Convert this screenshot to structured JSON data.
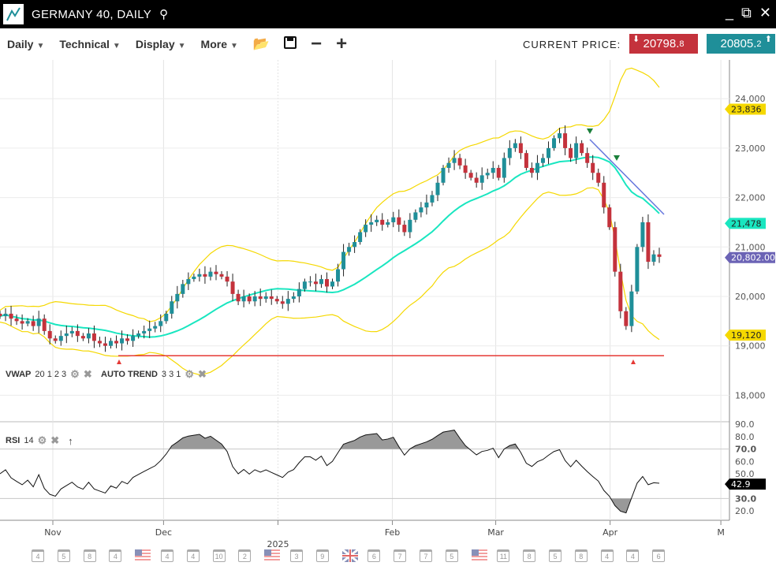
{
  "window": {
    "title": "GERMANY 40, DAILY",
    "icons": [
      "chart-logo-icon",
      "search-icon",
      "minimize-icon",
      "detach-icon",
      "close-icon"
    ]
  },
  "toolbar": {
    "menus": [
      "Daily",
      "Technical",
      "Display",
      "More"
    ],
    "tools": [
      "open-folder-icon",
      "save-icon",
      "zoom-out-icon",
      "zoom-in-icon"
    ],
    "current_price_label": "CURRENT PRICE:",
    "sell": {
      "main": "20798.",
      "small": "8"
    },
    "buy": {
      "main": "20805.",
      "small": "2"
    }
  },
  "colors": {
    "sell": "#c4323c",
    "buy": "#1f8f99",
    "bollinger": "#f5d800",
    "vwap": "#19e6c0",
    "trend": "#6677dd",
    "support": "#e53935",
    "up_candle": "#1f8f99",
    "down_candle": "#c4323c",
    "current": "#6b63b5"
  },
  "indicators": {
    "vwap": {
      "name": "VWAP",
      "params": "20 1 2 3"
    },
    "auto_trend": {
      "name": "AUTO TREND",
      "params": "3 3 1"
    },
    "rsi": {
      "name": "RSI",
      "params": "14"
    }
  },
  "chart_data": {
    "type": "candlestick",
    "start_date": "2024-10-21",
    "closes": [
      19600,
      19650,
      19550,
      19500,
      19450,
      19500,
      19400,
      19550,
      19300,
      19150,
      19100,
      19200,
      19250,
      19300,
      19200,
      19150,
      19250,
      19100,
      19050,
      19000,
      19100,
      19050,
      19150,
      19100,
      19200,
      19250,
      19300,
      19350,
      19400,
      19500,
      19650,
      19900,
      20050,
      20250,
      20350,
      20400,
      20450,
      20400,
      20500,
      20450,
      20400,
      20300,
      20050,
      19900,
      20000,
      19900,
      20000,
      19950,
      20000,
      19950,
      19900,
      19850,
      19950,
      20000,
      20150,
      20300,
      20300,
      20250,
      20350,
      20200,
      20300,
      20550,
      20900,
      21000,
      21100,
      21300,
      21450,
      21500,
      21550,
      21450,
      21500,
      21600,
      21450,
      21300,
      21550,
      21700,
      21800,
      21900,
      22050,
      22300,
      22600,
      22700,
      22800,
      22650,
      22500,
      22400,
      22300,
      22450,
      22500,
      22600,
      22400,
      22800,
      23000,
      23100,
      22900,
      22600,
      22500,
      22700,
      22800,
      23000,
      23200,
      23300,
      23000,
      22800,
      23100,
      22900,
      22700,
      22500,
      22300,
      21800,
      21400,
      20500,
      19700,
      19400,
      20100,
      21000,
      21500,
      20700,
      20850,
      20800
    ],
    "y_ticks": [
      18000,
      19000,
      20000,
      21000,
      22000,
      23000,
      24000
    ],
    "y_range": [
      17600,
      24800
    ],
    "rsi_ticks": [
      "90.0",
      "80.0",
      "70.0",
      "60.0",
      "50.0",
      "30.0",
      "20.0"
    ],
    "rsi_range": [
      15,
      95
    ],
    "x_labels": [
      {
        "label": "Nov",
        "date": "2024-11-01"
      },
      {
        "label": "Dec",
        "date": "2024-12-01"
      },
      {
        "label": "2025",
        "date": "2025-01-01"
      },
      {
        "label": "Feb",
        "date": "2025-02-01"
      },
      {
        "label": "Mar",
        "date": "2025-03-01"
      },
      {
        "label": "Apr",
        "date": "2025-04-01"
      },
      {
        "label": "M",
        "date": "2025-05-01"
      }
    ],
    "price_tags": [
      {
        "value": "23,836",
        "price": 23836,
        "color": "#f5d800",
        "text": "#222"
      },
      {
        "value": "21,478",
        "price": 21478,
        "color": "#19e6c0",
        "text": "#222"
      },
      {
        "value": "20,802.00",
        "price": 20802,
        "color": "#6b63b5",
        "text": "#fff"
      },
      {
        "value": "19,120",
        "price": 19120,
        "color": "#f5d800",
        "text": "#222"
      }
    ],
    "rsi_tag": {
      "value": "42.9",
      "level": 42.9
    },
    "support_level": 18800
  },
  "calendar": [
    "4",
    "5",
    "8",
    "4",
    "US",
    "4",
    "4",
    "10",
    "2",
    "US",
    "3",
    "9",
    "UK",
    "6",
    "7",
    "7",
    "5",
    "US",
    "11",
    "8",
    "5",
    "8",
    "4",
    "4",
    "6"
  ]
}
